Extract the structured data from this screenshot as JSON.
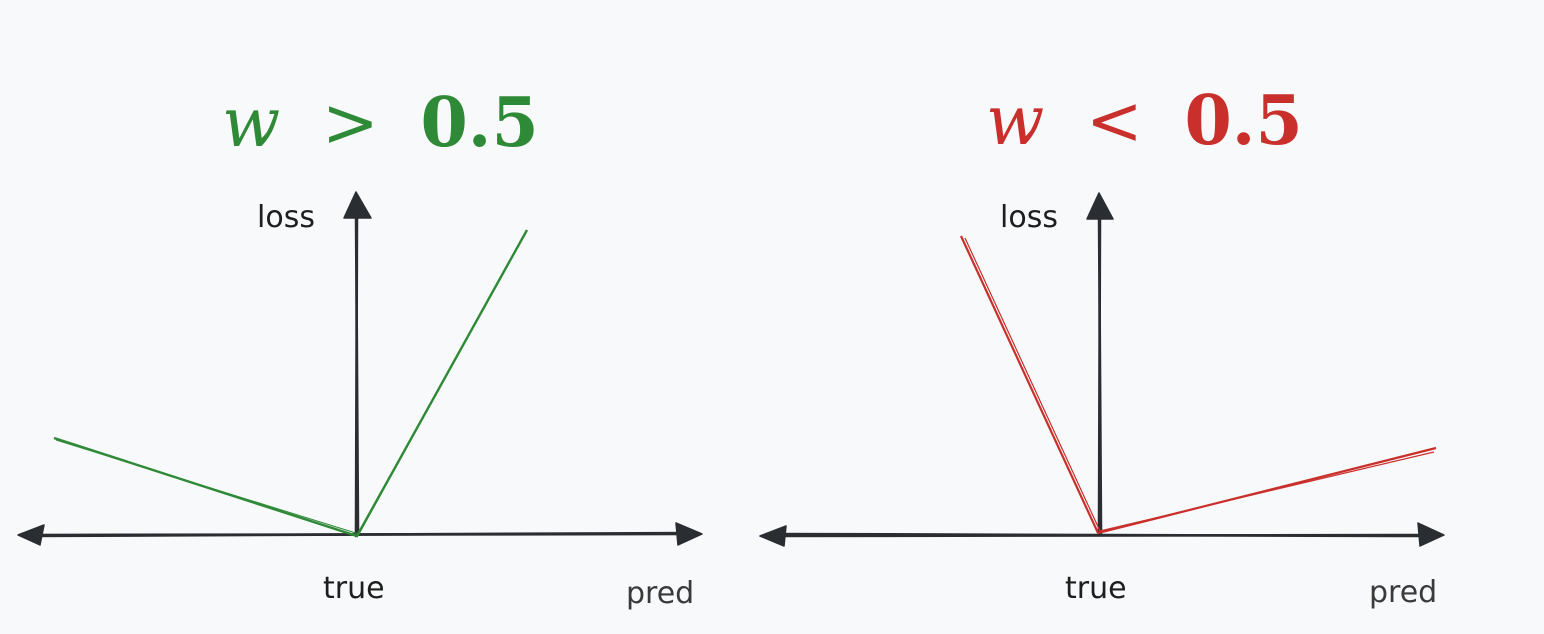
{
  "panels": [
    {
      "title_var": "w",
      "title_op": ">",
      "title_num": "0.5",
      "y_label": "loss",
      "origin_label": "true",
      "x_label": "pred",
      "color": "#2f8a37"
    },
    {
      "title_var": "w",
      "title_op": "<",
      "title_num": "0.5",
      "y_label": "loss",
      "origin_label": "true",
      "x_label": "pred",
      "color": "#c9302c"
    }
  ]
}
